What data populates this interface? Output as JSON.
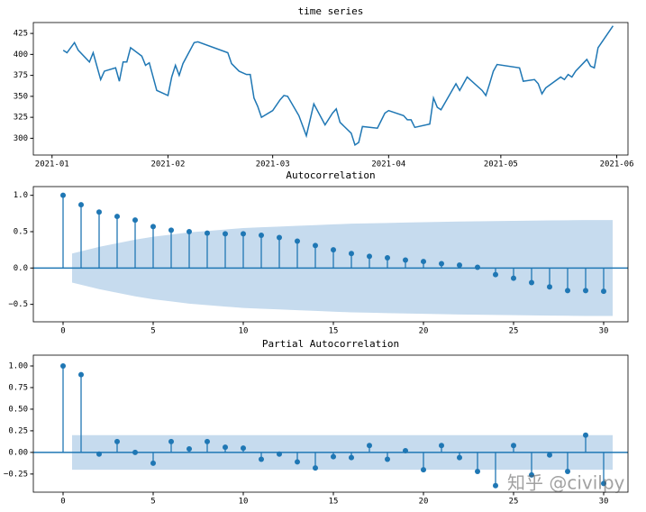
{
  "chart_data": [
    {
      "type": "line",
      "title": "time series",
      "color": "#1f77b4",
      "x": [
        "2021-01-04",
        "2021-01-05",
        "2021-01-07",
        "2021-01-08",
        "2021-01-11",
        "2021-01-12",
        "2021-01-14",
        "2021-01-15",
        "2021-01-18",
        "2021-01-19",
        "2021-01-20",
        "2021-01-21",
        "2021-01-22",
        "2021-01-25",
        "2021-01-26",
        "2021-01-27",
        "2021-01-29",
        "2021-02-01",
        "2021-02-02",
        "2021-02-03",
        "2021-02-04",
        "2021-02-05",
        "2021-02-08",
        "2021-02-09",
        "2021-02-17",
        "2021-02-18",
        "2021-02-20",
        "2021-02-22",
        "2021-02-23",
        "2021-02-24",
        "2021-02-25",
        "2021-02-26",
        "2021-03-01",
        "2021-03-03",
        "2021-03-04",
        "2021-03-05",
        "2021-03-08",
        "2021-03-10",
        "2021-03-12",
        "2021-03-15",
        "2021-03-17",
        "2021-03-18",
        "2021-03-19",
        "2021-03-22",
        "2021-03-23",
        "2021-03-24",
        "2021-03-25",
        "2021-03-29",
        "2021-03-30",
        "2021-03-31",
        "2021-04-01",
        "2021-04-05",
        "2021-04-06",
        "2021-04-07",
        "2021-04-08",
        "2021-04-12",
        "2021-04-13",
        "2021-04-14",
        "2021-04-15",
        "2021-04-19",
        "2021-04-20",
        "2021-04-22",
        "2021-04-26",
        "2021-04-27",
        "2021-04-28",
        "2021-04-29",
        "2021-04-30",
        "2021-05-06",
        "2021-05-07",
        "2021-05-10",
        "2021-05-11",
        "2021-05-12",
        "2021-05-13",
        "2021-05-17",
        "2021-05-18",
        "2021-05-19",
        "2021-05-20",
        "2021-05-21",
        "2021-05-24",
        "2021-05-25",
        "2021-05-26",
        "2021-05-27",
        "2021-05-31"
      ],
      "values": [
        405,
        402,
        414,
        405,
        391,
        402,
        370,
        380,
        384,
        368,
        391,
        391,
        408,
        398,
        387,
        390,
        357,
        351,
        373,
        387,
        375,
        389,
        414,
        415,
        402,
        389,
        380,
        376,
        376,
        348,
        338,
        325,
        333,
        346,
        351,
        350,
        327,
        303,
        341,
        316,
        330,
        335,
        319,
        306,
        292,
        295,
        314,
        312,
        321,
        330,
        333,
        327,
        322,
        322,
        313,
        317,
        348,
        337,
        334,
        365,
        357,
        373,
        357,
        351,
        365,
        380,
        388,
        384,
        368,
        370,
        365,
        353,
        360,
        373,
        370,
        376,
        373,
        380,
        394,
        386,
        384,
        408,
        434
      ],
      "xlim": [
        "2020-12-27",
        "2021-06-04"
      ],
      "xticks": [
        {
          "value": "2021-01-01",
          "label": "2021-01"
        },
        {
          "value": "2021-02-01",
          "label": "2021-02"
        },
        {
          "value": "2021-03-01",
          "label": "2021-03"
        },
        {
          "value": "2021-04-01",
          "label": "2021-04"
        },
        {
          "value": "2021-05-01",
          "label": "2021-05"
        },
        {
          "value": "2021-06-01",
          "label": "2021-06"
        }
      ],
      "ylim": [
        280,
        438
      ],
      "yticks": [
        300,
        325,
        350,
        375,
        400,
        425
      ]
    },
    {
      "type": "stem",
      "title": "Autocorrelation",
      "color": "#1f77b4",
      "band_color": "#c6dbee",
      "x": [
        0,
        1,
        2,
        3,
        4,
        5,
        6,
        7,
        8,
        9,
        10,
        11,
        12,
        13,
        14,
        15,
        16,
        17,
        18,
        19,
        20,
        21,
        22,
        23,
        24,
        25,
        26,
        27,
        28,
        29,
        30
      ],
      "values": [
        1.0,
        0.87,
        0.77,
        0.71,
        0.66,
        0.57,
        0.52,
        0.5,
        0.48,
        0.47,
        0.47,
        0.45,
        0.42,
        0.37,
        0.31,
        0.25,
        0.2,
        0.16,
        0.14,
        0.11,
        0.09,
        0.06,
        0.04,
        0.01,
        -0.09,
        -0.14,
        -0.2,
        -0.26,
        -0.31,
        -0.31,
        -0.32
      ],
      "confint_upper": [
        null,
        0.2,
        0.29,
        0.34,
        0.39,
        0.43,
        0.46,
        0.49,
        0.51,
        0.53,
        0.55,
        0.56,
        0.57,
        0.58,
        0.59,
        0.6,
        0.61,
        0.615,
        0.62,
        0.625,
        0.63,
        0.635,
        0.64,
        0.643,
        0.646,
        0.649,
        0.652,
        0.655,
        0.657,
        0.659,
        0.66
      ],
      "confint_lower": [
        null,
        -0.2,
        -0.29,
        -0.34,
        -0.39,
        -0.43,
        -0.46,
        -0.49,
        -0.51,
        -0.53,
        -0.55,
        -0.56,
        -0.57,
        -0.58,
        -0.59,
        -0.6,
        -0.61,
        -0.615,
        -0.62,
        -0.625,
        -0.63,
        -0.635,
        -0.64,
        -0.643,
        -0.646,
        -0.649,
        -0.652,
        -0.655,
        -0.657,
        -0.659,
        -0.66
      ],
      "xlim": [
        -1.65,
        31.35
      ],
      "xticks": [
        0,
        5,
        10,
        15,
        20,
        25,
        30
      ],
      "ylim": [
        -0.74,
        1.12
      ],
      "yticks": [
        {
          "value": 1,
          "label": "1.0"
        },
        0.5,
        {
          "value": 0,
          "label": "0.0"
        },
        {
          "value": -0.5,
          "label": "−0.5"
        }
      ]
    },
    {
      "type": "stem",
      "title": "Partial Autocorrelation",
      "color": "#1f77b4",
      "band_color": "#c6dbee",
      "x": [
        0,
        1,
        2,
        3,
        4,
        5,
        6,
        7,
        8,
        9,
        10,
        11,
        12,
        13,
        14,
        15,
        16,
        17,
        18,
        19,
        20,
        21,
        22,
        23,
        24,
        25,
        26,
        27,
        28,
        29,
        30
      ],
      "values": [
        1.0,
        0.9,
        -0.02,
        0.125,
        0.0,
        -0.125,
        0.125,
        0.04,
        0.125,
        0.06,
        0.05,
        -0.08,
        -0.02,
        -0.11,
        -0.18,
        -0.05,
        -0.06,
        0.08,
        -0.08,
        0.02,
        -0.2,
        0.08,
        -0.06,
        -0.22,
        -0.385,
        0.08,
        -0.26,
        -0.03,
        -0.22,
        0.2,
        -0.36
      ],
      "confint_upper": [
        null,
        0.2,
        0.2,
        0.2,
        0.2,
        0.2,
        0.2,
        0.2,
        0.2,
        0.2,
        0.2,
        0.2,
        0.2,
        0.2,
        0.2,
        0.2,
        0.2,
        0.2,
        0.2,
        0.2,
        0.2,
        0.2,
        0.2,
        0.2,
        0.2,
        0.2,
        0.2,
        0.2,
        0.2,
        0.2,
        0.2
      ],
      "confint_lower": [
        null,
        -0.2,
        -0.2,
        -0.2,
        -0.2,
        -0.2,
        -0.2,
        -0.2,
        -0.2,
        -0.2,
        -0.2,
        -0.2,
        -0.2,
        -0.2,
        -0.2,
        -0.2,
        -0.2,
        -0.2,
        -0.2,
        -0.2,
        -0.2,
        -0.2,
        -0.2,
        -0.2,
        -0.2,
        -0.2,
        -0.2,
        -0.2,
        -0.2,
        -0.2,
        -0.2
      ],
      "xlim": [
        -1.65,
        31.35
      ],
      "xticks": [
        0,
        5,
        10,
        15,
        20,
        25,
        30
      ],
      "ylim": [
        -0.46,
        1.125
      ],
      "yticks": [
        {
          "value": 1,
          "label": "1.00"
        },
        {
          "value": 0.75,
          "label": "0.75"
        },
        {
          "value": 0.5,
          "label": "0.50"
        },
        {
          "value": 0.25,
          "label": "0.25"
        },
        {
          "value": 0,
          "label": "0.00"
        },
        {
          "value": -0.25,
          "label": "−0.25"
        }
      ]
    }
  ],
  "watermark": "知乎 @civilpy"
}
